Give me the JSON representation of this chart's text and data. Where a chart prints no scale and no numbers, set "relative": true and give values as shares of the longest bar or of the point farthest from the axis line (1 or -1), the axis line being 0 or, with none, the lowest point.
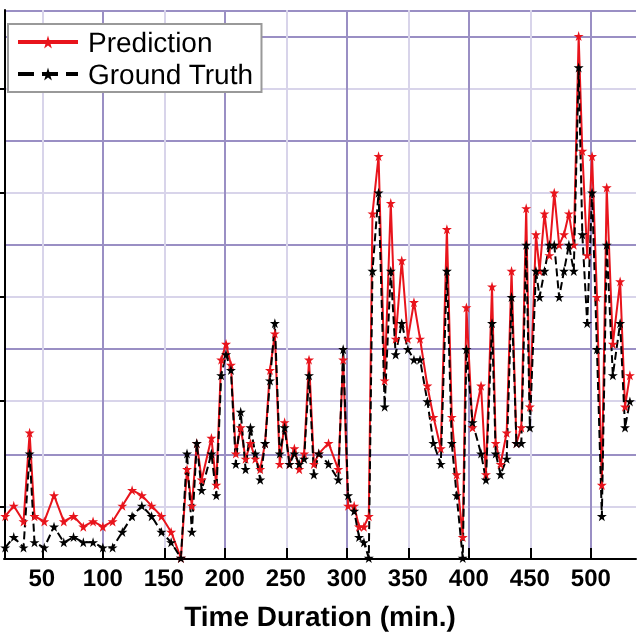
{
  "chart_data": {
    "type": "line",
    "relative": true,
    "xlabel": "Time Duration (min.)",
    "x": [
      20,
      27,
      35,
      40,
      44,
      52,
      60,
      68,
      76,
      84,
      92,
      100,
      108,
      116,
      124,
      132,
      140,
      148,
      156,
      164,
      169,
      173,
      177,
      181,
      189,
      193,
      197,
      201,
      205,
      209,
      213,
      217,
      221,
      225,
      229,
      233,
      237,
      241,
      245,
      249,
      253,
      257,
      261,
      265,
      269,
      273,
      277,
      285,
      293,
      297,
      301,
      306,
      310,
      314,
      318,
      321,
      326,
      331,
      336,
      340,
      345,
      350,
      355,
      360,
      366,
      371,
      377,
      382,
      386,
      390,
      395,
      398,
      403,
      410,
      414,
      419,
      422,
      426,
      431,
      435,
      439,
      443,
      447,
      450,
      455,
      458,
      462,
      466,
      470,
      474,
      478,
      482,
      486,
      490,
      493,
      497,
      501,
      505,
      509,
      513,
      518,
      524,
      528,
      532
    ],
    "xlim": [
      19,
      537
    ],
    "xticks": [
      50,
      100,
      150,
      200,
      250,
      300,
      350,
      400,
      450,
      500
    ],
    "series": [
      {
        "name": "Prediction",
        "color": "#e8141c",
        "marker": "star",
        "line_style": "solid",
        "values": [
          0.08,
          0.1,
          0.07,
          0.24,
          0.08,
          0.07,
          0.12,
          0.07,
          0.08,
          0.06,
          0.07,
          0.06,
          0.07,
          0.1,
          0.13,
          0.12,
          0.1,
          0.08,
          0.05,
          0.0,
          0.17,
          0.1,
          0.22,
          0.15,
          0.23,
          0.14,
          0.38,
          0.41,
          0.37,
          0.2,
          0.25,
          0.19,
          0.22,
          0.19,
          0.17,
          0.22,
          0.36,
          0.43,
          0.18,
          0.26,
          0.18,
          0.21,
          0.17,
          0.2,
          0.38,
          0.18,
          0.2,
          0.22,
          0.17,
          0.38,
          0.1,
          0.1,
          0.06,
          0.06,
          0.08,
          0.66,
          0.77,
          0.34,
          0.68,
          0.42,
          0.57,
          0.42,
          0.49,
          0.42,
          0.33,
          0.27,
          0.21,
          0.63,
          0.27,
          0.16,
          0.04,
          0.48,
          0.25,
          0.33,
          0.16,
          0.52,
          0.22,
          0.18,
          0.24,
          0.55,
          0.22,
          0.25,
          0.67,
          0.29,
          0.62,
          0.55,
          0.66,
          0.58,
          0.7,
          0.6,
          0.62,
          0.66,
          0.6,
          1.0,
          0.78,
          0.58,
          0.77,
          0.5,
          0.14,
          0.71,
          0.41,
          0.53,
          0.29,
          0.35
        ]
      },
      {
        "name": "Ground Truth",
        "color": "#000000",
        "marker": "star",
        "line_style": "dashed",
        "values": [
          0.02,
          0.04,
          0.02,
          0.2,
          0.03,
          0.02,
          0.06,
          0.03,
          0.04,
          0.03,
          0.03,
          0.02,
          0.02,
          0.05,
          0.08,
          0.1,
          0.08,
          0.05,
          0.03,
          0.0,
          0.2,
          0.05,
          0.22,
          0.13,
          0.2,
          0.12,
          0.35,
          0.39,
          0.36,
          0.18,
          0.28,
          0.17,
          0.25,
          0.2,
          0.15,
          0.22,
          0.34,
          0.45,
          0.2,
          0.25,
          0.18,
          0.2,
          0.18,
          0.19,
          0.35,
          0.16,
          0.2,
          0.18,
          0.15,
          0.4,
          0.12,
          0.09,
          0.04,
          0.03,
          0.0,
          0.55,
          0.7,
          0.29,
          0.55,
          0.39,
          0.45,
          0.4,
          0.38,
          0.38,
          0.3,
          0.22,
          0.18,
          0.55,
          0.22,
          0.12,
          0.0,
          0.4,
          0.26,
          0.2,
          0.15,
          0.45,
          0.2,
          0.16,
          0.19,
          0.5,
          0.22,
          0.22,
          0.6,
          0.25,
          0.55,
          0.5,
          0.55,
          0.6,
          0.6,
          0.5,
          0.55,
          0.6,
          0.55,
          0.94,
          0.62,
          0.45,
          0.7,
          0.4,
          0.08,
          0.6,
          0.35,
          0.45,
          0.25,
          0.3
        ]
      }
    ],
    "grid": true,
    "legend": "top left",
    "tick_labels": "x"
  }
}
